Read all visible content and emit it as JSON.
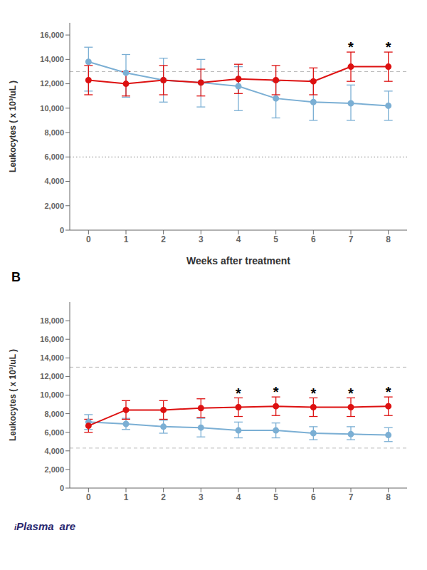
{
  "chart_data": [
    {
      "type": "line",
      "x": [
        0,
        1,
        2,
        3,
        4,
        5,
        6,
        7,
        8
      ],
      "xlim": [
        -0.5,
        8.5
      ],
      "xticks": [
        0,
        1,
        2,
        3,
        4,
        5,
        6,
        7,
        8
      ],
      "ylim": [
        0,
        17000
      ],
      "yticks": [
        0,
        {
          "value": 2000,
          "label": "2,000"
        },
        {
          "value": 4000,
          "label": "4,000"
        },
        {
          "value": 6000,
          "label": "6,000"
        },
        {
          "value": 8000,
          "label": "8,000"
        },
        {
          "value": 10000,
          "label": "10,000"
        },
        {
          "value": 12000,
          "label": "12,000"
        },
        {
          "value": 14000,
          "label": "14,000"
        },
        {
          "value": 16000,
          "label": "16,000"
        }
      ],
      "ylabel": "Leukocytes ( x 10³/uL )",
      "xlabel": "Weeks after treatment",
      "series": [
        {
          "color": "#7bafd4",
          "marker": "circle",
          "line_style": "solid",
          "values": [
            13800,
            12900,
            12300,
            12100,
            11800,
            10800,
            10500,
            10400,
            10200
          ],
          "error_low": [
            2400,
            2000,
            1800,
            2000,
            2000,
            1600,
            1500,
            1400,
            1200
          ],
          "error_high": [
            1200,
            1500,
            1800,
            1900,
            1600,
            1400,
            1800,
            1500,
            1200
          ]
        },
        {
          "color": "#dd1111",
          "marker": "circle",
          "line_style": "solid",
          "values": [
            12300,
            12000,
            12300,
            12100,
            12400,
            12300,
            12200,
            13400,
            13400
          ],
          "error": [
            1200,
            1000,
            1200,
            1100,
            1200,
            1200,
            1100,
            1200,
            1200
          ]
        }
      ],
      "reference_lines": [
        {
          "y": 13000,
          "color": "#bbbbbb",
          "line_style": "dashed"
        },
        {
          "y": 6000,
          "color": "#888888",
          "line_style": "dotted"
        }
      ],
      "annotations": [
        {
          "text": "*",
          "x": 7
        },
        {
          "text": "*",
          "x": 8
        }
      ]
    },
    {
      "type": "line",
      "title": "B",
      "x": [
        0,
        1,
        2,
        3,
        4,
        5,
        6,
        7,
        8
      ],
      "xlim": [
        -0.5,
        8.5
      ],
      "xticks": [
        0,
        1,
        2,
        3,
        4,
        5,
        6,
        7,
        8
      ],
      "ylim": [
        0,
        20000
      ],
      "yticks": [
        0,
        {
          "value": 2000,
          "label": "2,000"
        },
        {
          "value": 4000,
          "label": "4,000"
        },
        {
          "value": 6000,
          "label": "6,000"
        },
        {
          "value": 8000,
          "label": "8,000"
        },
        {
          "value": 10000,
          "label": "10,000"
        },
        {
          "value": 12000,
          "label": "12,000"
        },
        {
          "value": 14000,
          "label": "14,000"
        },
        {
          "value": 16000,
          "label": "16,000"
        },
        {
          "value": 18000,
          "label": "18,000"
        }
      ],
      "ylabel": "Leukocytes ( x 10³/uL )",
      "series": [
        {
          "color": "#7bafd4",
          "marker": "circle",
          "line_style": "solid",
          "values": [
            7100,
            6900,
            6600,
            6500,
            6200,
            6200,
            5900,
            5800,
            5700
          ],
          "error_low": [
            800,
            600,
            700,
            1000,
            800,
            800,
            700,
            600,
            700
          ],
          "error_high": [
            800,
            600,
            700,
            1000,
            900,
            800,
            700,
            800,
            800
          ]
        },
        {
          "color": "#dd1111",
          "marker": "circle",
          "line_style": "solid",
          "values": [
            6700,
            8400,
            8400,
            8600,
            8700,
            8800,
            8700,
            8700,
            8800
          ],
          "error": [
            700,
            1000,
            1000,
            1000,
            1000,
            1000,
            1000,
            1000,
            1000
          ]
        }
      ],
      "reference_lines": [
        {
          "y": 13000,
          "color": "#bbbbbb",
          "line_style": "dashed"
        },
        {
          "y": 4300,
          "color": "#bbbbbb",
          "line_style": "dashed"
        }
      ],
      "annotations": [
        {
          "text": "*",
          "x": 4
        },
        {
          "text": "*",
          "x": 5
        },
        {
          "text": "*",
          "x": 6
        },
        {
          "text": "*",
          "x": 7
        },
        {
          "text": "*",
          "x": 8
        }
      ]
    }
  ],
  "annotations": [
    {
      "text": "i",
      "color": "#2a2870"
    },
    {
      "text": "Plasma",
      "color": "#2a2870"
    },
    {
      "text": "are",
      "color": "#2a2870"
    }
  ]
}
